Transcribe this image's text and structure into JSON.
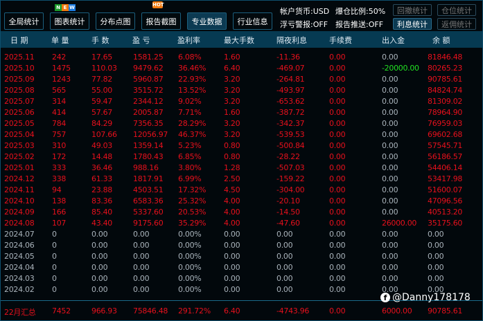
{
  "toolbar": {
    "buttons": [
      "全局统计",
      "图表统计",
      "分布点图",
      "报告截图",
      "专业数据",
      "行业信息"
    ],
    "new_badge": [
      "N",
      "E",
      "W"
    ],
    "hot_badge": "HOT"
  },
  "info": {
    "currency": "帐户货币:USD",
    "margin_call": "爆仓比例:50%",
    "float_alert": "浮亏警报:OFF",
    "report_push": "报告推送:OFF"
  },
  "side_buttons": [
    "回撤统计",
    "仓位统计",
    "利息统计",
    "返佣统计"
  ],
  "columns": [
    "日 期",
    "单 量",
    "手 数",
    "盈 亏",
    "盈利率",
    "最大手数",
    "隔夜利息",
    "手续费",
    "出入金",
    "余 额"
  ],
  "rows": [
    [
      "2025.11",
      "242",
      "17.65",
      "1581.25",
      "6.08%",
      "1.60",
      "-11.36",
      "0.00",
      "0.00",
      "81846.48"
    ],
    [
      "2025.10",
      "1475",
      "110.03",
      "9479.62",
      "36.46%",
      "6.40",
      "-469.07",
      "0.00",
      "-20000.00",
      "80265.23"
    ],
    [
      "2025.09",
      "1243",
      "77.82",
      "5960.87",
      "22.93%",
      "3.20",
      "-264.81",
      "0.00",
      "0.00",
      "90785.61"
    ],
    [
      "2025.08",
      "565",
      "55.00",
      "3515.72",
      "13.52%",
      "3.20",
      "-493.97",
      "0.00",
      "0.00",
      "84824.74"
    ],
    [
      "2025.07",
      "314",
      "59.47",
      "2344.12",
      "9.02%",
      "3.20",
      "-653.62",
      "0.00",
      "0.00",
      "81309.02"
    ],
    [
      "2025.06",
      "414",
      "57.67",
      "2005.87",
      "7.71%",
      "1.60",
      "-387.72",
      "0.00",
      "0.00",
      "78964.90"
    ],
    [
      "2025.05",
      "784",
      "84.29",
      "7356.35",
      "28.29%",
      "3.20",
      "-342.37",
      "0.00",
      "0.00",
      "76959.03"
    ],
    [
      "2025.04",
      "757",
      "107.66",
      "12056.97",
      "46.37%",
      "3.20",
      "-539.53",
      "0.00",
      "0.00",
      "69602.68"
    ],
    [
      "2025.03",
      "310",
      "49.03",
      "1359.14",
      "5.23%",
      "0.80",
      "-500.84",
      "0.00",
      "0.00",
      "57545.71"
    ],
    [
      "2025.02",
      "172",
      "14.48",
      "1780.43",
      "6.85%",
      "0.80",
      "-28.22",
      "0.00",
      "0.00",
      "56186.57"
    ],
    [
      "2025.01",
      "333",
      "36.46",
      "988.16",
      "3.80%",
      "1.28",
      "-507.03",
      "0.00",
      "0.00",
      "54406.14"
    ],
    [
      "2024.12",
      "338",
      "61.33",
      "1817.91",
      "6.99%",
      "2.50",
      "-159.22",
      "0.00",
      "0.00",
      "53417.98"
    ],
    [
      "2024.11",
      "94",
      "23.88",
      "4503.51",
      "17.32%",
      "4.50",
      "-304.00",
      "0.00",
      "0.00",
      "51600.07"
    ],
    [
      "2024.10",
      "138",
      "83.36",
      "6583.36",
      "25.32%",
      "4.00",
      "-20.10",
      "0.00",
      "0.00",
      "47096.56"
    ],
    [
      "2024.09",
      "166",
      "85.40",
      "5337.60",
      "20.53%",
      "4.00",
      "-14.50",
      "0.00",
      "0.00",
      "40513.20"
    ],
    [
      "2024.08",
      "107",
      "43.40",
      "9175.60",
      "35.29%",
      "4.00",
      "-47.60",
      "0.00",
      "26000.00",
      "35175.60"
    ],
    [
      "2024.07",
      "0",
      "0.00",
      "0.00",
      "0.00%",
      "0.00",
      "0.00",
      "0.00",
      "0.00",
      "0.00"
    ],
    [
      "2024.06",
      "0",
      "0.00",
      "0.00",
      "0.00%",
      "0.00",
      "0.00",
      "0.00",
      "0.00",
      "0.00"
    ],
    [
      "2024.05",
      "0",
      "0.00",
      "0.00",
      "0.00%",
      "0.00",
      "0.00",
      "0.00",
      "0.00",
      "0.00"
    ],
    [
      "2024.04",
      "0",
      "0.00",
      "0.00",
      "0.00%",
      "0.00",
      "0.00",
      "0.00",
      "0.00",
      "0.00"
    ],
    [
      "2024.03",
      "0",
      "0.00",
      "0.00",
      "0.00%",
      "0.00",
      "0.00",
      "0.00",
      "0.00",
      "0.00"
    ],
    [
      "2024.02",
      "0",
      "0.00",
      "0.00",
      "0.00%",
      "0.00",
      "0.00",
      "0.00",
      "0.00",
      "0.00"
    ]
  ],
  "summary": [
    "22月汇总",
    "7452",
    "966.93",
    "75846.48",
    "291.72%",
    "6.40",
    "-4743.96",
    "0.00",
    "6000.00",
    "90785.61"
  ],
  "watermark": "@Danny178178",
  "colors": {
    "positive": "#e8101c",
    "zero": "#a9b3bb",
    "withdrawal": "#22e022",
    "header_bg": "#063a52"
  }
}
